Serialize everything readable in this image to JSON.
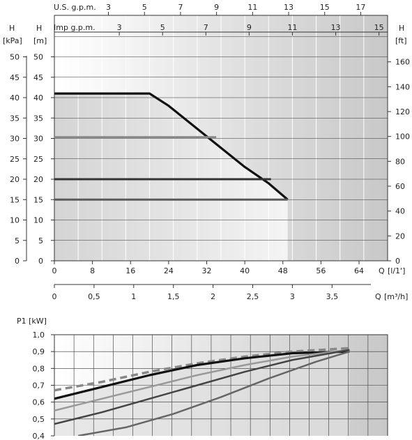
{
  "chart_data": [
    {
      "type": "line",
      "top_units": {
        "us_label": "U.S. g.p.m.",
        "imp_label": "Imp g.p.m."
      },
      "axis_titles": {
        "left_kpa_letter": "H",
        "left_kpa_unit": "[kPa]",
        "left_m_letter": "H",
        "left_m_unit": "[m]",
        "right_ft_letter": "H",
        "right_ft_unit": "[ft]",
        "x_q_letter": "Q",
        "x_lmin_unit": "[l/1']",
        "x_m3h_unit": "[m³/h]"
      },
      "y_m_ticks": [
        "0",
        "5",
        "10",
        "15",
        "20",
        "25",
        "30",
        "35",
        "40",
        "45",
        "50"
      ],
      "y_kpa_ticks": [
        "0",
        "5",
        "10",
        "15",
        "20",
        "25",
        "30",
        "35",
        "40",
        "45",
        "50"
      ],
      "y_ft_ticks": [
        "0",
        "20",
        "40",
        "60",
        "80",
        "100",
        "120",
        "140",
        "160"
      ],
      "x_lmin_ticks": [
        "0",
        "8",
        "16",
        "24",
        "32",
        "40",
        "48",
        "56",
        "64"
      ],
      "x_m3h_ticks": [
        "0",
        "0,5",
        "1",
        "1,5",
        "2",
        "2,5",
        "3",
        "3,5"
      ],
      "us_gpm_ticks": [
        "3",
        "5",
        "7",
        "9",
        "11",
        "13",
        "15",
        "17"
      ],
      "imp_gpm_ticks": [
        "3",
        "5",
        "7",
        "9",
        "11",
        "13",
        "15"
      ],
      "ylim_m": [
        0,
        50
      ],
      "xlim_lmin": [
        0,
        70
      ],
      "series": [
        {
          "color": "#111111",
          "width": 3.2,
          "points": [
            [
              0,
              41
            ],
            [
              20,
              41
            ],
            [
              24,
              38
            ],
            [
              32,
              30.5
            ],
            [
              40,
              23
            ],
            [
              45,
              19
            ],
            [
              48,
              16
            ],
            [
              49,
              15
            ]
          ]
        },
        {
          "color": "#888888",
          "width": 3,
          "points": [
            [
              0,
              30.3
            ],
            [
              34,
              30.3
            ]
          ]
        },
        {
          "color": "#333333",
          "width": 3,
          "points": [
            [
              0,
              20
            ],
            [
              45.5,
              20
            ]
          ]
        },
        {
          "color": "#5a5a5a",
          "width": 3,
          "points": [
            [
              0,
              15
            ],
            [
              49,
              15
            ]
          ]
        }
      ]
    },
    {
      "type": "line",
      "y_unit_label": "P1 [kW]",
      "y_ticks": [
        "1,0",
        "0,9",
        "0,8",
        "0,7",
        "0,6",
        "0,5",
        "0,4"
      ],
      "ylim": [
        0.4,
        1.0
      ],
      "xlim": [
        0,
        70
      ],
      "series": [
        {
          "color": "#888888",
          "width": 3.5,
          "dashed": true,
          "points": [
            [
              0,
              0.67
            ],
            [
              10,
              0.72
            ],
            [
              20,
              0.78
            ],
            [
              30,
              0.83
            ],
            [
              40,
              0.87
            ],
            [
              50,
              0.9
            ],
            [
              62,
              0.92
            ]
          ]
        },
        {
          "color": "#111111",
          "width": 3.2,
          "points": [
            [
              0,
              0.62
            ],
            [
              10,
              0.69
            ],
            [
              20,
              0.76
            ],
            [
              30,
              0.82
            ],
            [
              40,
              0.86
            ],
            [
              50,
              0.89
            ],
            [
              62,
              0.9
            ]
          ]
        },
        {
          "color": "#999999",
          "width": 2.5,
          "points": [
            [
              0,
              0.55
            ],
            [
              10,
              0.62
            ],
            [
              20,
              0.69
            ],
            [
              30,
              0.76
            ],
            [
              40,
              0.82
            ],
            [
              50,
              0.87
            ],
            [
              62,
              0.91
            ]
          ]
        },
        {
          "color": "#444444",
          "width": 2.5,
          "points": [
            [
              0,
              0.47
            ],
            [
              10,
              0.54
            ],
            [
              20,
              0.62
            ],
            [
              30,
              0.7
            ],
            [
              40,
              0.78
            ],
            [
              50,
              0.85
            ],
            [
              62,
              0.91
            ]
          ]
        },
        {
          "color": "#666666",
          "width": 2.5,
          "points": [
            [
              5,
              0.4
            ],
            [
              15,
              0.45
            ],
            [
              25,
              0.53
            ],
            [
              35,
              0.63
            ],
            [
              45,
              0.74
            ],
            [
              55,
              0.84
            ],
            [
              62,
              0.9
            ]
          ]
        }
      ]
    }
  ]
}
